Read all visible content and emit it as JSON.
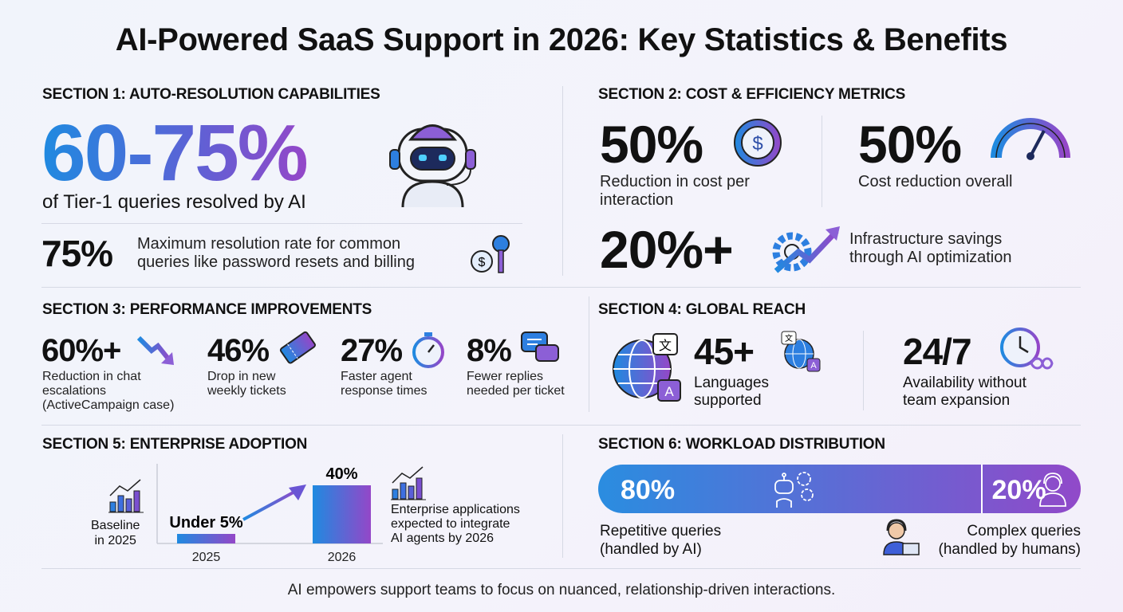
{
  "title": "AI-Powered SaaS Support in 2026: Key Statistics & Benefits",
  "colors": {
    "gradient_start": "#1f8ae0",
    "gradient_end": "#9447c8",
    "text": "#111111"
  },
  "s1": {
    "heading": "SECTION 1: AUTO-RESOLUTION CAPABILITIES",
    "big": "60-75%",
    "big_desc": "of Tier-1 queries resolved by AI",
    "stat": "75%",
    "stat_desc": [
      "Maximum resolution rate for common",
      "queries like password resets and billing"
    ],
    "icons": [
      "robot-headset-icon",
      "dollar-key-icon"
    ]
  },
  "s2": {
    "heading": "SECTION 2: COST & EFFICIENCY METRICS",
    "items": [
      {
        "value": "50%",
        "desc": [
          "Reduction in cost per",
          "interaction"
        ],
        "icon": "dollar-coin-icon"
      },
      {
        "value": "50%",
        "desc": [
          "Cost reduction overall"
        ],
        "icon": "gauge-icon"
      },
      {
        "value": "20%+",
        "desc": [
          "Infrastructure savings",
          "through AI optimization"
        ],
        "icon": "gear-trend-icon"
      }
    ]
  },
  "s3": {
    "heading": "SECTION 3: PERFORMANCE IMPROVEMENTS",
    "items": [
      {
        "value": "60%+",
        "desc": [
          "Reduction in chat",
          "escalations",
          "(ActiveCampaign case)"
        ],
        "icon": "down-trend-icon"
      },
      {
        "value": "46%",
        "desc": [
          "Drop in new",
          "weekly tickets"
        ],
        "icon": "ticket-icon"
      },
      {
        "value": "27%",
        "desc": [
          "Faster agent",
          "response times"
        ],
        "icon": "stopwatch-icon"
      },
      {
        "value": "8%",
        "desc": [
          "Fewer replies",
          "needed per ticket"
        ],
        "icon": "chat-bubbles-icon"
      }
    ]
  },
  "s4": {
    "heading": "SECTION 4: GLOBAL REACH",
    "items": [
      {
        "value": "45+",
        "desc": [
          "Languages",
          "supported"
        ],
        "icon": "globe-translate-icon"
      },
      {
        "value": "24/7",
        "desc": [
          "Availability without",
          "team expansion"
        ],
        "icon": "clock-infinity-icon"
      }
    ]
  },
  "s5": {
    "heading": "SECTION 5: ENTERPRISE ADOPTION",
    "left_desc": [
      "Baseline",
      "in 2025"
    ],
    "right_desc": [
      "Enterprise applications",
      "expected to integrate",
      "AI agents by 2026"
    ],
    "chart_data": {
      "type": "bar",
      "categories": [
        "2025",
        "2026"
      ],
      "values": [
        5,
        40
      ],
      "data_labels": [
        "Under 5%",
        "40%"
      ],
      "unit": "%"
    }
  },
  "s6": {
    "heading": "SECTION 6: WORKLOAD DISTRIBUTION",
    "ai_share": 80,
    "human_share": 20,
    "ai_label": "80%",
    "human_label": "20%",
    "ai_desc": [
      "Repetitive queries",
      "(handled by AI)"
    ],
    "human_desc": [
      "Complex queries",
      "(handled by humans)"
    ]
  },
  "footer": "AI empowers support teams to focus on nuanced, relationship-driven interactions."
}
